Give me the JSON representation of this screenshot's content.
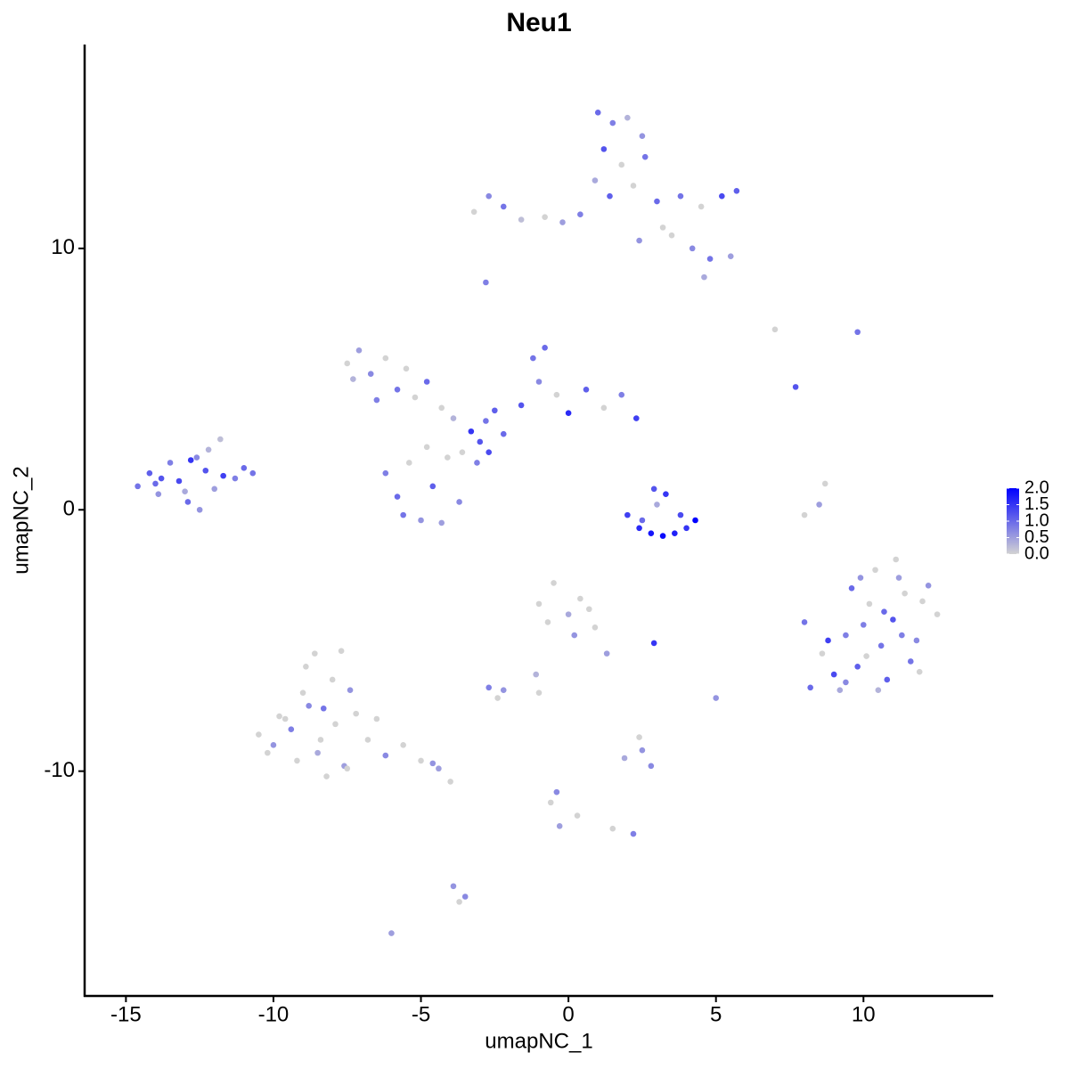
{
  "chart_data": {
    "type": "scatter",
    "title": "Neu1",
    "x_label": "umapNC_1",
    "y_label": "umapNC_2",
    "xlim": [
      -16.4,
      14.4
    ],
    "ylim": [
      -18.6,
      17.8
    ],
    "xticks": [
      -15,
      -10,
      -5,
      0,
      5,
      10
    ],
    "yticks": [
      -10,
      0,
      10
    ],
    "color_low": "#d3d3d3",
    "color_high": "#0000ff",
    "color_lim": [
      0,
      2.0
    ],
    "color_ticks": [
      {
        "value": 0,
        "label": "0.0"
      },
      {
        "value": 0.5,
        "label": "0.5"
      },
      {
        "value": 1,
        "label": "1.0"
      },
      {
        "value": 1.5,
        "label": "1.5"
      },
      {
        "value": 2,
        "label": "2.0"
      }
    ],
    "x": [
      -14.6,
      -14.2,
      -13.9,
      -13.5,
      -13.2,
      -12.9,
      -12.6,
      -12.3,
      -12.0,
      -11.7,
      -11.3,
      -11.0,
      -10.7,
      -13.8,
      -13.0,
      -12.5,
      -12.2,
      -11.8,
      -14.0,
      -12.8,
      1.0,
      1.5,
      2.0,
      2.5,
      1.2,
      1.8,
      2.6,
      0.9,
      1.4,
      2.2,
      -3.2,
      -2.7,
      -2.2,
      -1.6,
      -0.8,
      -0.2,
      0.4,
      3.0,
      3.8,
      4.5,
      5.2,
      5.7,
      3.5,
      4.2,
      4.8,
      5.5,
      4.6,
      3.2,
      2.4,
      -2.8,
      -3.3,
      -3.0,
      -2.8,
      -3.6,
      -2.5,
      -3.9,
      -2.2,
      -4.3,
      -3.1,
      -2.7,
      -7.5,
      -7.1,
      -6.7,
      -6.2,
      -5.8,
      -5.2,
      -4.8,
      -7.3,
      -6.5,
      -5.5,
      -6.2,
      -5.8,
      -5.4,
      -5.0,
      -4.6,
      -4.1,
      -3.7,
      -5.6,
      -4.8,
      -4.3,
      -1.6,
      -1.2,
      -0.8,
      -0.4,
      0.0,
      0.6,
      1.2,
      1.8,
      2.3,
      -1.0,
      2.0,
      2.4,
      2.8,
      3.2,
      3.6,
      4.0,
      4.3,
      2.9,
      3.3,
      3.0,
      2.5,
      3.8,
      8.2,
      8.6,
      9.0,
      9.4,
      9.8,
      10.2,
      10.6,
      11.0,
      11.4,
      11.8,
      12.2,
      12.5,
      9.2,
      9.6,
      10.0,
      10.4,
      10.8,
      11.2,
      11.6,
      12.0,
      8.8,
      9.4,
      10.1,
      10.7,
      11.3,
      11.9,
      9.9,
      10.5,
      11.1,
      8.0,
      -10.5,
      -10.0,
      -9.6,
      -9.2,
      -8.8,
      -8.4,
      -8.0,
      -7.6,
      -7.2,
      -8.9,
      -9.4,
      -8.6,
      -7.9,
      -7.4,
      -8.2,
      -9.8,
      -8.5,
      -7.7,
      -6.8,
      -6.2,
      -5.6,
      -5.0,
      -4.4,
      -4.0,
      -9.0,
      -8.3,
      -7.5,
      -10.2,
      -6.5,
      -4.6,
      -1.0,
      -0.5,
      0.0,
      0.4,
      0.9,
      1.3,
      -0.7,
      0.2,
      0.7,
      -1.1,
      -2.7,
      -2.4,
      -2.2,
      -1.0,
      -0.4,
      -0.6,
      -0.3,
      0.3,
      1.5,
      2.2,
      2.5,
      2.8,
      2.4,
      1.9,
      -3.5,
      -3.7,
      -3.9,
      -6.0,
      7.0,
      9.8,
      7.7,
      8.5,
      8.0,
      8.7,
      2.9,
      5.0
    ],
    "series": [
      {
        "name": "Neu1",
        "values": [
          0.9,
          1.4,
          0.6,
          1.8,
          1.1,
          0.3,
          2.0,
          1.5,
          0.8,
          1.3,
          1.2,
          1.6,
          1.4,
          1.2,
          0.7,
          0.0,
          2.3,
          2.7,
          1.0,
          1.9,
          15.2,
          14.8,
          15.0,
          14.3,
          13.8,
          13.2,
          13.5,
          12.6,
          12.0,
          12.4,
          11.4,
          12.0,
          11.6,
          11.1,
          11.2,
          11.0,
          11.3,
          11.8,
          12.0,
          11.6,
          12.0,
          12.2,
          10.5,
          10.0,
          9.6,
          9.7,
          8.9,
          10.8,
          10.3,
          8.7,
          3.0,
          2.6,
          3.4,
          2.2,
          3.8,
          3.5,
          2.9,
          3.9,
          1.8,
          2.2,
          5.6,
          6.1,
          5.2,
          5.8,
          4.6,
          4.3,
          4.9,
          5.0,
          4.2,
          5.4,
          1.4,
          0.5,
          1.8,
          -0.4,
          0.9,
          2.0,
          0.3,
          -0.2,
          2.4,
          -0.5,
          4.0,
          5.8,
          6.2,
          4.4,
          3.7,
          4.6,
          3.9,
          4.4,
          3.5,
          4.9,
          -0.2,
          -0.7,
          -0.9,
          -1.0,
          -0.9,
          -0.7,
          -0.4,
          0.8,
          0.6,
          0.2,
          -0.4,
          -0.2,
          -6.8,
          -5.5,
          -6.3,
          -4.8,
          -6.0,
          -3.6,
          -5.2,
          -4.2,
          -3.2,
          -5.0,
          -2.9,
          -4.0,
          -6.9,
          -3.0,
          -4.4,
          -2.3,
          -6.5,
          -2.6,
          -5.8,
          -3.5,
          -5.0,
          -6.6,
          -5.6,
          -3.9,
          -4.8,
          -6.2,
          -2.6,
          -6.9,
          -1.9,
          -4.3,
          -8.6,
          -9.0,
          -8.0,
          -9.6,
          -7.5,
          -8.8,
          -6.5,
          -9.8,
          -7.8,
          -6.0,
          -8.4,
          -5.5,
          -8.2,
          -6.9,
          -10.2,
          -7.9,
          -9.3,
          -5.4,
          -8.8,
          -9.4,
          -9.0,
          -9.6,
          -9.9,
          -10.4,
          -7.0,
          -7.6,
          -9.9,
          -9.3,
          -8.0,
          -9.7,
          -3.6,
          -2.8,
          -4.0,
          -3.4,
          -4.5,
          -5.5,
          -4.3,
          -4.8,
          -3.8,
          -6.3,
          -6.8,
          -7.2,
          -6.9,
          -7.0,
          -10.8,
          -11.2,
          -12.1,
          -11.7,
          -12.2,
          -12.4,
          -9.2,
          -9.8,
          -8.7,
          -9.5,
          -14.8,
          -15.0,
          -14.4,
          -16.2,
          6.9,
          6.8,
          4.7,
          0.2,
          -0.2,
          1.0,
          -5.1,
          -7.2
        ],
        "expression": [
          0.9,
          1.1,
          0.6,
          0.8,
          1.3,
          1.0,
          0.7,
          1.2,
          0.5,
          1.4,
          0.8,
          1.0,
          0.9,
          1.2,
          0.4,
          0.6,
          0.3,
          0.2,
          1.0,
          1.5,
          1.0,
          0.8,
          0.3,
          0.6,
          1.2,
          0.0,
          0.9,
          0.4,
          1.1,
          0.0,
          0.0,
          0.7,
          0.9,
          0.2,
          0.0,
          0.5,
          0.8,
          1.0,
          0.9,
          0.0,
          1.3,
          1.1,
          0.0,
          0.7,
          0.9,
          0.5,
          0.4,
          0.0,
          0.6,
          0.8,
          1.5,
          1.2,
          0.9,
          0.0,
          1.1,
          0.3,
          1.0,
          0.0,
          0.8,
          1.3,
          0.0,
          0.5,
          0.7,
          0.0,
          0.9,
          0.0,
          1.0,
          0.3,
          0.8,
          0.0,
          0.8,
          1.0,
          0.0,
          0.6,
          1.1,
          0.0,
          0.7,
          0.9,
          0.0,
          0.5,
          1.2,
          0.9,
          1.0,
          0.0,
          1.6,
          1.1,
          0.0,
          0.8,
          1.4,
          0.7,
          1.4,
          1.6,
          1.8,
          1.9,
          1.7,
          1.5,
          2.0,
          1.2,
          1.5,
          0.4,
          1.0,
          1.3,
          1.0,
          0.0,
          1.3,
          0.8,
          1.1,
          0.0,
          0.9,
          1.2,
          0.0,
          0.7,
          0.6,
          0.0,
          0.4,
          1.0,
          0.8,
          0.0,
          1.1,
          0.5,
          0.9,
          0.0,
          1.4,
          0.7,
          0.0,
          1.0,
          0.8,
          0.0,
          0.6,
          0.3,
          0.0,
          0.9,
          0.0,
          0.6,
          0.0,
          0.0,
          0.7,
          0.0,
          0.0,
          0.5,
          0.0,
          0.0,
          0.8,
          0.0,
          0.0,
          0.6,
          0.0,
          0.0,
          0.4,
          0.0,
          0.0,
          0.7,
          0.0,
          0.0,
          0.5,
          0.0,
          0.0,
          0.9,
          0.0,
          0.0,
          0.0,
          0.6,
          0.0,
          0.0,
          0.4,
          0.0,
          0.0,
          0.5,
          0.0,
          0.6,
          0.0,
          0.3,
          0.8,
          0.0,
          0.6,
          0.0,
          0.7,
          0.0,
          0.5,
          0.0,
          0.0,
          0.8,
          0.6,
          0.7,
          0.0,
          0.4,
          0.7,
          0.0,
          0.6,
          0.5,
          0.0,
          0.9,
          1.2,
          0.5,
          0.0,
          0.0,
          1.5,
          0.6
        ]
      }
    ]
  }
}
